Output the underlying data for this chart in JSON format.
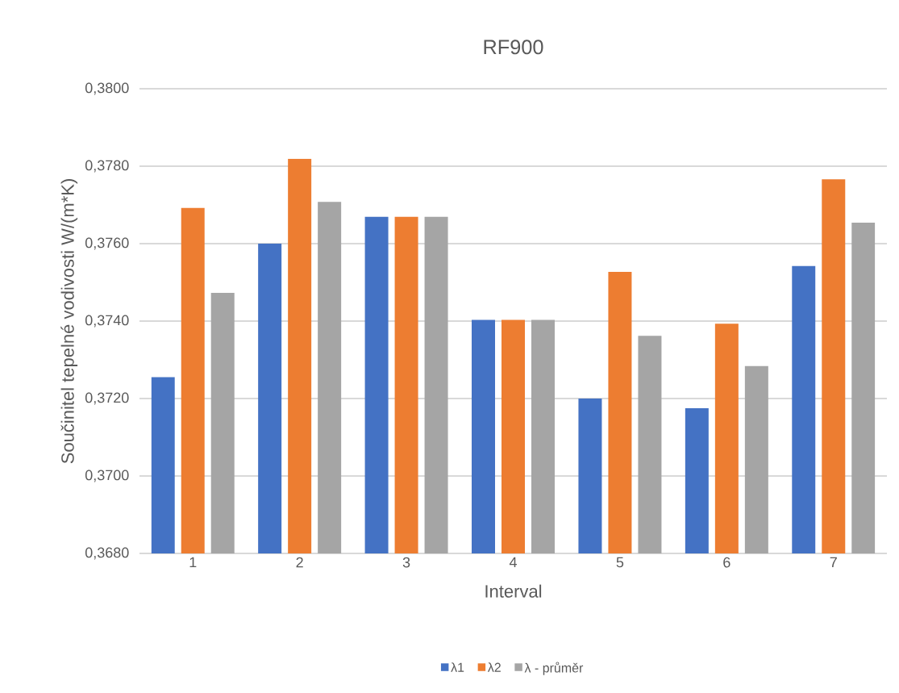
{
  "chart_data": {
    "type": "bar",
    "title": "RF900",
    "xlabel": "Interval",
    "ylabel": "Součinitel tepelné vodivosti W/(m*K)",
    "categories": [
      "1",
      "2",
      "3",
      "4",
      "5",
      "6",
      "7"
    ],
    "series": [
      {
        "name": "λ1",
        "color": "#4472c4",
        "values": [
          0.37255,
          0.376,
          0.37669,
          0.37403,
          0.372,
          0.37175,
          0.37542
        ]
      },
      {
        "name": "λ2",
        "color": "#ed7d31",
        "values": [
          0.37692,
          0.37819,
          0.37669,
          0.37403,
          0.37527,
          0.37393,
          0.37766
        ]
      },
      {
        "name": "λ - průměr",
        "color": "#a5a5a5",
        "values": [
          0.37473,
          0.37708,
          0.37669,
          0.37403,
          0.37362,
          0.37284,
          0.37654
        ]
      }
    ],
    "ylim": [
      0.368,
      0.38
    ],
    "yticks": [
      {
        "value": 0.368,
        "label": "0,3680"
      },
      {
        "value": 0.37,
        "label": "0,3700"
      },
      {
        "value": 0.372,
        "label": "0,3720"
      },
      {
        "value": 0.374,
        "label": "0,3740"
      },
      {
        "value": 0.376,
        "label": "0,3760"
      },
      {
        "value": 0.378,
        "label": "0,3780"
      },
      {
        "value": 0.38,
        "label": "0,3800"
      }
    ],
    "grid": "y",
    "legend": "bottom"
  }
}
